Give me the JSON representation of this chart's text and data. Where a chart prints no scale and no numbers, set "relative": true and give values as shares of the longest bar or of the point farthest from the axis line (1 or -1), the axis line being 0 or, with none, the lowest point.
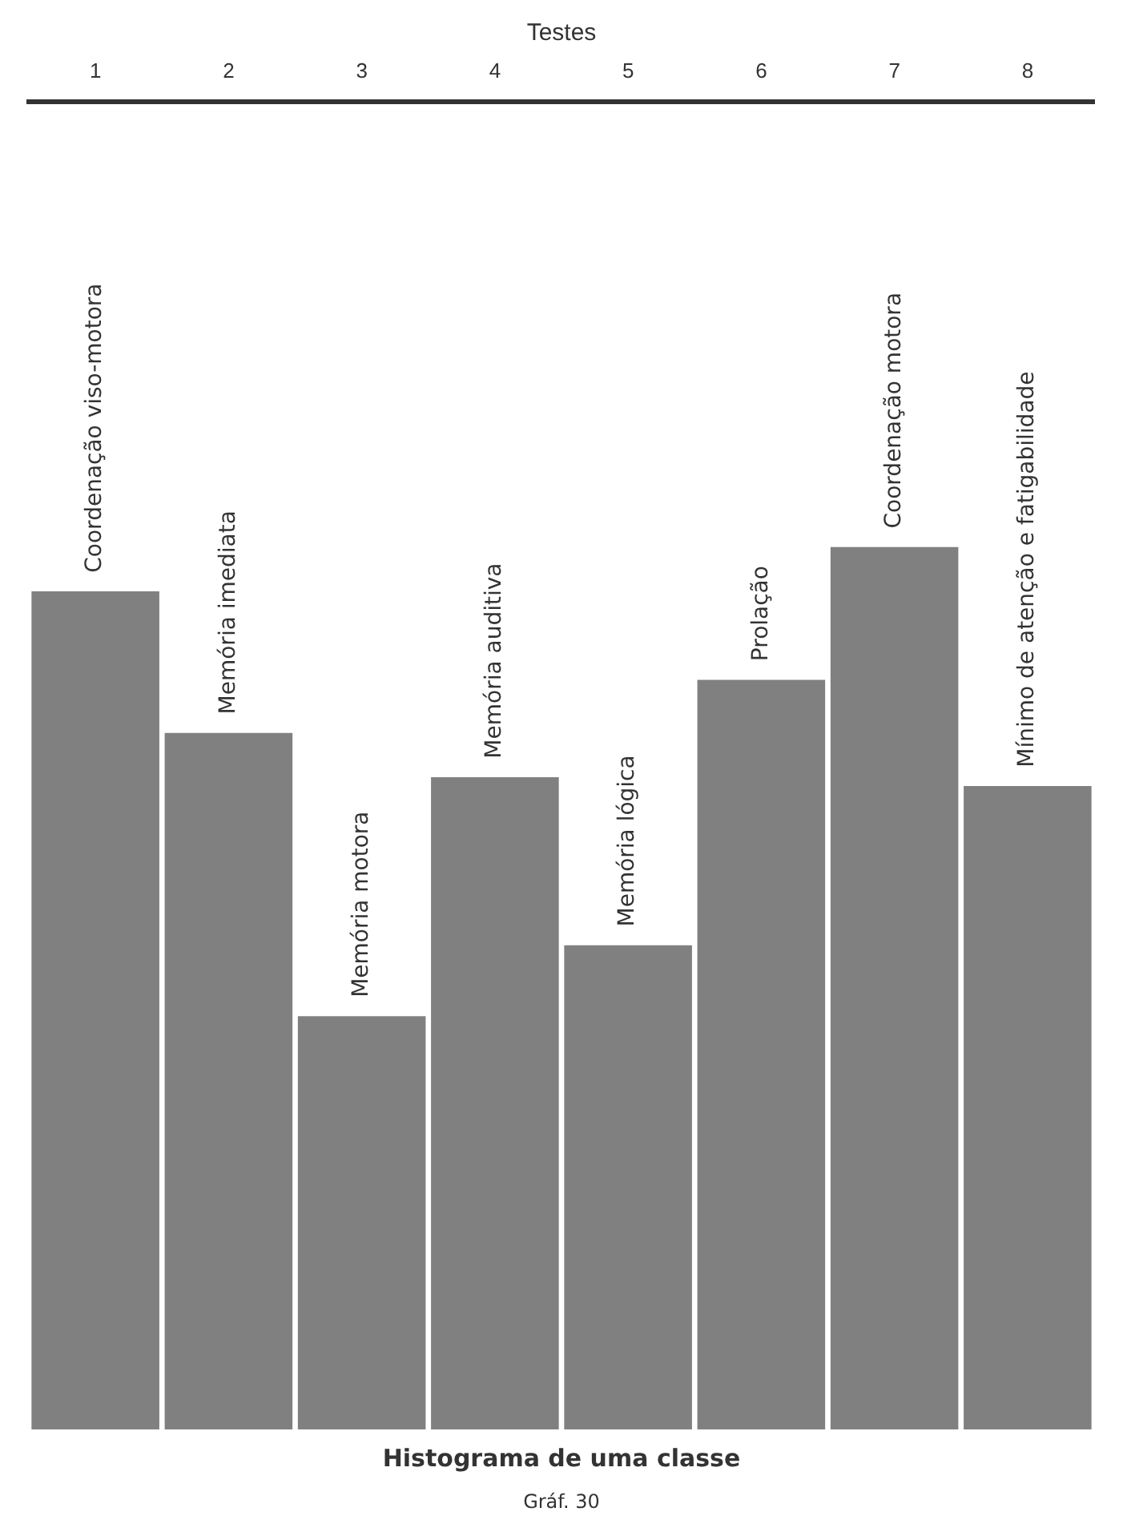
{
  "chart_data": {
    "type": "bar",
    "title": "Histograma de uma classe",
    "xlabel": "Testes",
    "categories": [
      "1",
      "2",
      "3",
      "4",
      "5",
      "6",
      "7",
      "8"
    ],
    "values": [
      0.95,
      0.79,
      0.47,
      0.74,
      0.55,
      0.85,
      1,
      0.73
    ],
    "color": "#808080",
    "relative": true,
    "annotations": [
      {
        "text": "Coordenação viso-motora",
        "x": "1",
        "y": 0.95
      },
      {
        "text": "Memória imediata",
        "x": "2",
        "y": 0.79
      },
      {
        "text": "Memória motora",
        "x": "3",
        "y": 0.47
      },
      {
        "text": "Memória auditiva",
        "x": "4",
        "y": 0.74
      },
      {
        "text": "Memória lógica",
        "x": "5",
        "y": 0.55
      },
      {
        "text": "Prolação",
        "x": "6",
        "y": 0.85
      },
      {
        "text": "Coordenação motora",
        "x": "7",
        "y": 1
      },
      {
        "text": "Mínimo de atenção e fatigabilidade",
        "x": "8",
        "y": 0.73
      },
      "Gráf. 30"
    ]
  }
}
